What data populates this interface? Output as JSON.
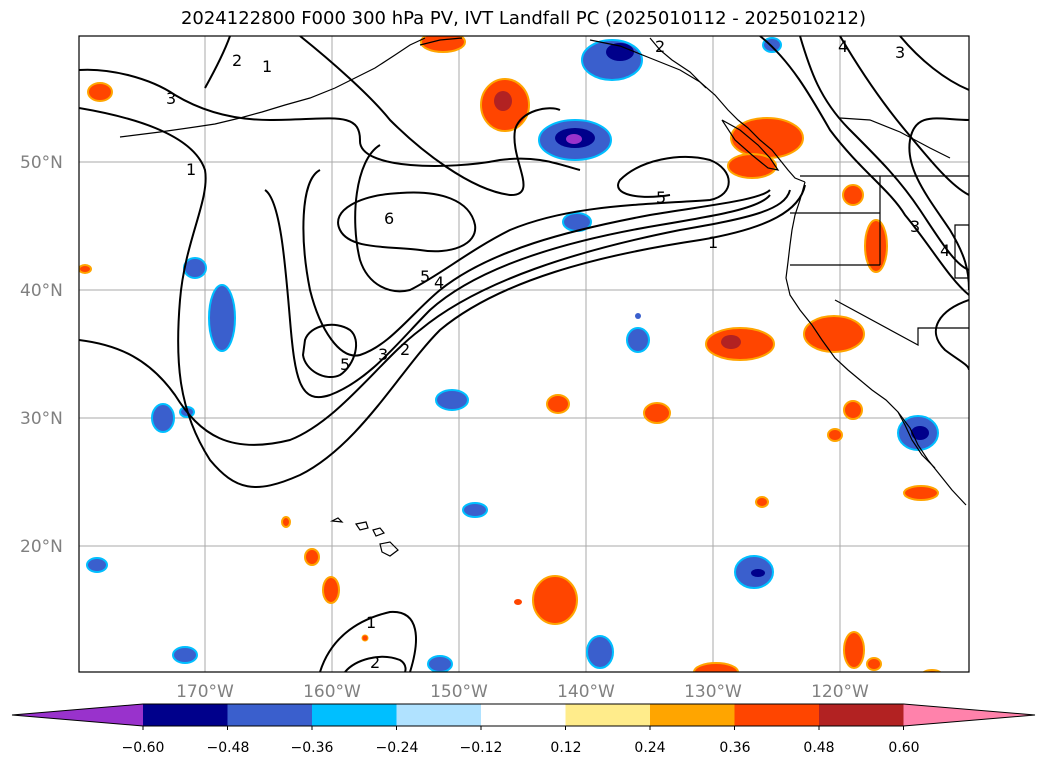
{
  "title": "2024122800 F000 300 hPa PV, IVT Landfall PC (2025010112 - 2025010212)",
  "map": {
    "lat_labels": [
      "50°N",
      "40°N",
      "30°N",
      "20°N"
    ],
    "lon_labels": [
      "170°W",
      "160°W",
      "150°W",
      "140°W",
      "130°W",
      "120°W"
    ],
    "grid_color": "#aaaaaa",
    "coast_color": "#000000"
  },
  "pv_contour_labels": [
    "3",
    "2",
    "1",
    "4",
    "3",
    "2",
    "1",
    "6",
    "5",
    "5",
    "4",
    "5",
    "3",
    "2",
    "1",
    "3",
    "4",
    "1",
    "2"
  ],
  "colorbar": {
    "ticks": [
      "−0.60",
      "−0.48",
      "−0.36",
      "−0.24",
      "−0.12",
      "0.12",
      "0.24",
      "0.36",
      "0.48",
      "0.60"
    ],
    "colors": [
      "#9932cc",
      "#00008b",
      "#3a5fcd",
      "#00bfff",
      "#b0e2ff",
      "#ffffff",
      "#ffec8b",
      "#ffa500",
      "#ff4500",
      "#b22222",
      "#ff82ab"
    ],
    "extend": "both"
  }
}
